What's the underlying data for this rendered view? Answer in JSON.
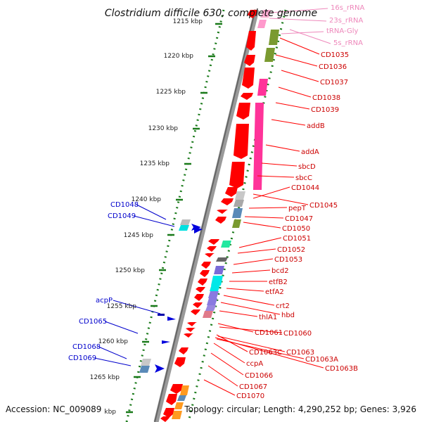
{
  "title": "Clostridium difficile 630, complete genome",
  "footer": {
    "accession": "Accession: NC_009089",
    "stats": "Topology: circular; Length: 4,290,252 bp; Genes: 3,926"
  },
  "kbp_labels": [
    "1215 kbp",
    "1220 kbp",
    "1225 kbp",
    "1230 kbp",
    "1235 kbp",
    "1240 kbp",
    "1245 kbp",
    "1250 kbp",
    "1255 kbp",
    "1260 kbp",
    "1265 kbp",
    "kbp"
  ],
  "labels_pink": [
    "16s_rRNA",
    "23s_rRNA",
    "tRNA-Gly",
    "5s_rRNA"
  ],
  "labels_red": [
    "CD1035",
    "CD1036",
    "CD1037",
    "CD1038",
    "CD1039",
    "addB",
    "addA",
    "sbcD",
    "sbcC",
    "CD1044",
    "CD1045",
    "pepT",
    "CD1047",
    "CD1050",
    "CD1051",
    "CD1052",
    "CD1053",
    "bcd2",
    "etfB2",
    "etfA2",
    "crt2",
    "hbd",
    "thlA1",
    "CD1061",
    "CD1060",
    "CD1063C",
    "CD1063",
    "CD1063A",
    "CD1063B",
    "ccpA",
    "CD1066",
    "CD1067",
    "CD1070"
  ],
  "labels_blue": [
    "CD1048",
    "CD1049",
    "acpP",
    "CD1065",
    "CD1068",
    "CD1069"
  ],
  "colors": {
    "cds": "#ff0000",
    "rrna": "#ff3399",
    "trna": "#7a9a30",
    "line_red": "#ff0000",
    "line_blue": "#0000cc",
    "dotted_ring": "#1a7a1a"
  }
}
